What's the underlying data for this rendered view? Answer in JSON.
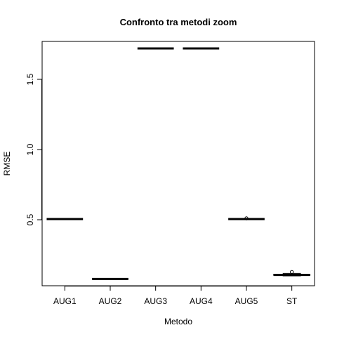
{
  "chart_data": {
    "type": "box",
    "title": "Confronto tra metodi zoom",
    "xlabel": "Metodo",
    "ylabel": "RMSE",
    "categories": [
      "AUG1",
      "AUG2",
      "AUG3",
      "AUG4",
      "AUG5",
      "ST"
    ],
    "y_ticks": [
      0.5,
      1.0,
      1.5
    ],
    "y_tick_labels": [
      "0.5",
      "1.0",
      "1.5"
    ],
    "ylim": [
      0.03,
      1.77
    ],
    "boxes": [
      {
        "category": "AUG1",
        "min": 0.505,
        "q1": 0.505,
        "median": 0.505,
        "q3": 0.505,
        "max": 0.505,
        "outliers": []
      },
      {
        "category": "AUG2",
        "min": 0.078,
        "q1": 0.078,
        "median": 0.078,
        "q3": 0.078,
        "max": 0.078,
        "outliers": []
      },
      {
        "category": "AUG3",
        "min": 1.72,
        "q1": 1.72,
        "median": 1.72,
        "q3": 1.72,
        "max": 1.72,
        "outliers": []
      },
      {
        "category": "AUG4",
        "min": 1.72,
        "q1": 1.72,
        "median": 1.72,
        "q3": 1.72,
        "max": 1.72,
        "outliers": []
      },
      {
        "category": "AUG5",
        "min": 0.505,
        "q1": 0.505,
        "median": 0.505,
        "q3": 0.505,
        "max": 0.505,
        "outliers": [
          0.51
        ]
      },
      {
        "category": "ST",
        "min": 0.1,
        "q1": 0.104,
        "median": 0.107,
        "q3": 0.112,
        "max": 0.118,
        "outliers": [
          0.128
        ]
      }
    ],
    "grid": false,
    "legend": "none"
  }
}
